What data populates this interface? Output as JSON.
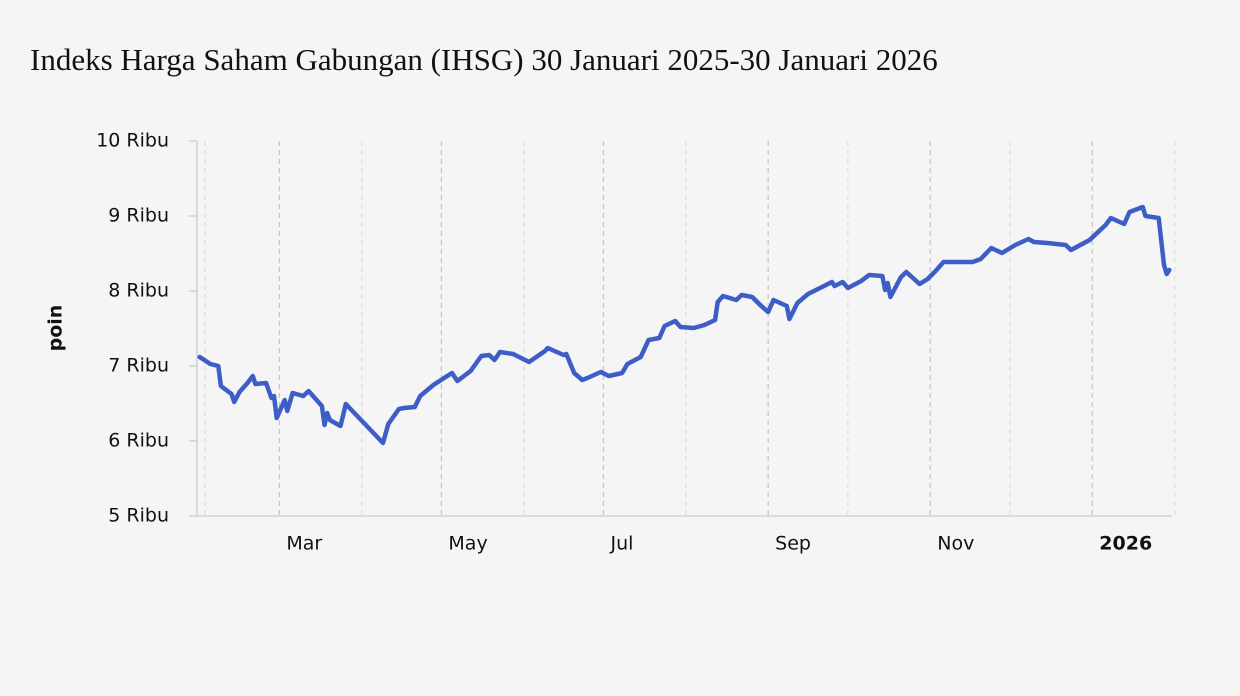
{
  "chart_data": {
    "type": "line",
    "title": "Indeks Harga Saham Gabungan (IHSG) 30 Januari 2025-30 Januari 2026",
    "y_label": "poin",
    "color": "#3d5ec6",
    "x": [
      "2025-01-30",
      "2025-02-03",
      "2025-02-06",
      "2025-02-07",
      "2025-02-11",
      "2025-02-12",
      "2025-02-14",
      "2025-02-17",
      "2025-02-19",
      "2025-02-20",
      "2025-02-24",
      "2025-02-26",
      "2025-02-27",
      "2025-02-28",
      "2025-03-03",
      "2025-03-04",
      "2025-03-06",
      "2025-03-10",
      "2025-03-12",
      "2025-03-14",
      "2025-03-17",
      "2025-03-18",
      "2025-03-19",
      "2025-03-20",
      "2025-03-24",
      "2025-03-26",
      "2025-04-09",
      "2025-04-11",
      "2025-04-15",
      "2025-04-17",
      "2025-04-21",
      "2025-04-23",
      "2025-04-28",
      "2025-05-02",
      "2025-05-05",
      "2025-05-07",
      "2025-05-12",
      "2025-05-16",
      "2025-05-19",
      "2025-05-21",
      "2025-05-23",
      "2025-05-28",
      "2025-06-03",
      "2025-06-09",
      "2025-06-10",
      "2025-06-16",
      "2025-06-17",
      "2025-06-20",
      "2025-06-23",
      "2025-06-25",
      "2025-06-30",
      "2025-07-03",
      "2025-07-08",
      "2025-07-10",
      "2025-07-15",
      "2025-07-18",
      "2025-07-22",
      "2025-07-24",
      "2025-07-28",
      "2025-07-30",
      "2025-08-04",
      "2025-08-08",
      "2025-08-12",
      "2025-08-13",
      "2025-08-15",
      "2025-08-20",
      "2025-08-22",
      "2025-08-26",
      "2025-08-29",
      "2025-09-01",
      "2025-09-03",
      "2025-09-08",
      "2025-09-09",
      "2025-09-12",
      "2025-09-16",
      "2025-09-22",
      "2025-09-25",
      "2025-09-26",
      "2025-09-29",
      "2025-10-01",
      "2025-10-06",
      "2025-10-09",
      "2025-10-14",
      "2025-10-15",
      "2025-10-16",
      "2025-10-17",
      "2025-10-21",
      "2025-10-23",
      "2025-10-28",
      "2025-10-31",
      "2025-11-03",
      "2025-11-06",
      "2025-11-12",
      "2025-11-17",
      "2025-11-20",
      "2025-11-24",
      "2025-11-28",
      "2025-12-03",
      "2025-12-08",
      "2025-12-10",
      "2025-12-15",
      "2025-12-22",
      "2025-12-24",
      "2025-12-31",
      "2026-01-06",
      "2026-01-08",
      "2026-01-13",
      "2026-01-15",
      "2026-01-20",
      "2026-01-21",
      "2026-01-26",
      "2026-01-28",
      "2026-01-29",
      "2026-01-30"
    ],
    "values": [
      7120,
      7027,
      7000,
      6733,
      6627,
      6520,
      6653,
      6773,
      6867,
      6760,
      6773,
      6573,
      6600,
      6307,
      6547,
      6400,
      6640,
      6600,
      6667,
      6587,
      6467,
      6213,
      6373,
      6280,
      6200,
      6493,
      5973,
      6227,
      6427,
      6440,
      6453,
      6600,
      6747,
      6840,
      6907,
      6800,
      6933,
      7133,
      7147,
      7080,
      7187,
      7160,
      7053,
      7200,
      7240,
      7147,
      7160,
      6907,
      6813,
      6840,
      6920,
      6867,
      6907,
      7027,
      7120,
      7347,
      7373,
      7533,
      7600,
      7520,
      7507,
      7547,
      7613,
      7853,
      7933,
      7880,
      7947,
      7920,
      7813,
      7720,
      7880,
      7800,
      7627,
      7840,
      7960,
      8067,
      8120,
      8067,
      8120,
      8040,
      8133,
      8213,
      8200,
      8013,
      8107,
      7920,
      8187,
      8253,
      8093,
      8160,
      8267,
      8387,
      8387,
      8387,
      8427,
      8573,
      8507,
      8613,
      8693,
      8653,
      8640,
      8613,
      8547,
      8680,
      8880,
      8973,
      8893,
      9053,
      9120,
      9000,
      8973,
      8347,
      8227,
      8280
    ],
    "xlim": [
      "2025-01-29",
      "2026-01-31"
    ],
    "xticks": [
      {
        "value": "2025-03-01",
        "label": "Mar"
      },
      {
        "value": "2025-05-01",
        "label": "May"
      },
      {
        "value": "2025-07-01",
        "label": "Jul"
      },
      {
        "value": "2025-09-01",
        "label": "Sep"
      },
      {
        "value": "2025-11-01",
        "label": "Nov"
      },
      {
        "value": "2026-01-01",
        "label": "2026"
      }
    ],
    "xminor": [
      "2025-02-01",
      "2025-04-01",
      "2025-06-01",
      "2025-08-01",
      "2025-10-01",
      "2025-12-01",
      "2026-02-01"
    ],
    "ylim": [
      5000,
      10000
    ],
    "yticks": [
      {
        "value": 5000,
        "label": "5 Ribu"
      },
      {
        "value": 6000,
        "label": "6 Ribu"
      },
      {
        "value": 7000,
        "label": "7 Ribu"
      },
      {
        "value": 8000,
        "label": "8 Ribu"
      },
      {
        "value": 9000,
        "label": "9 Ribu"
      },
      {
        "value": 10000,
        "label": "10 Ribu"
      }
    ],
    "grid": true
  }
}
